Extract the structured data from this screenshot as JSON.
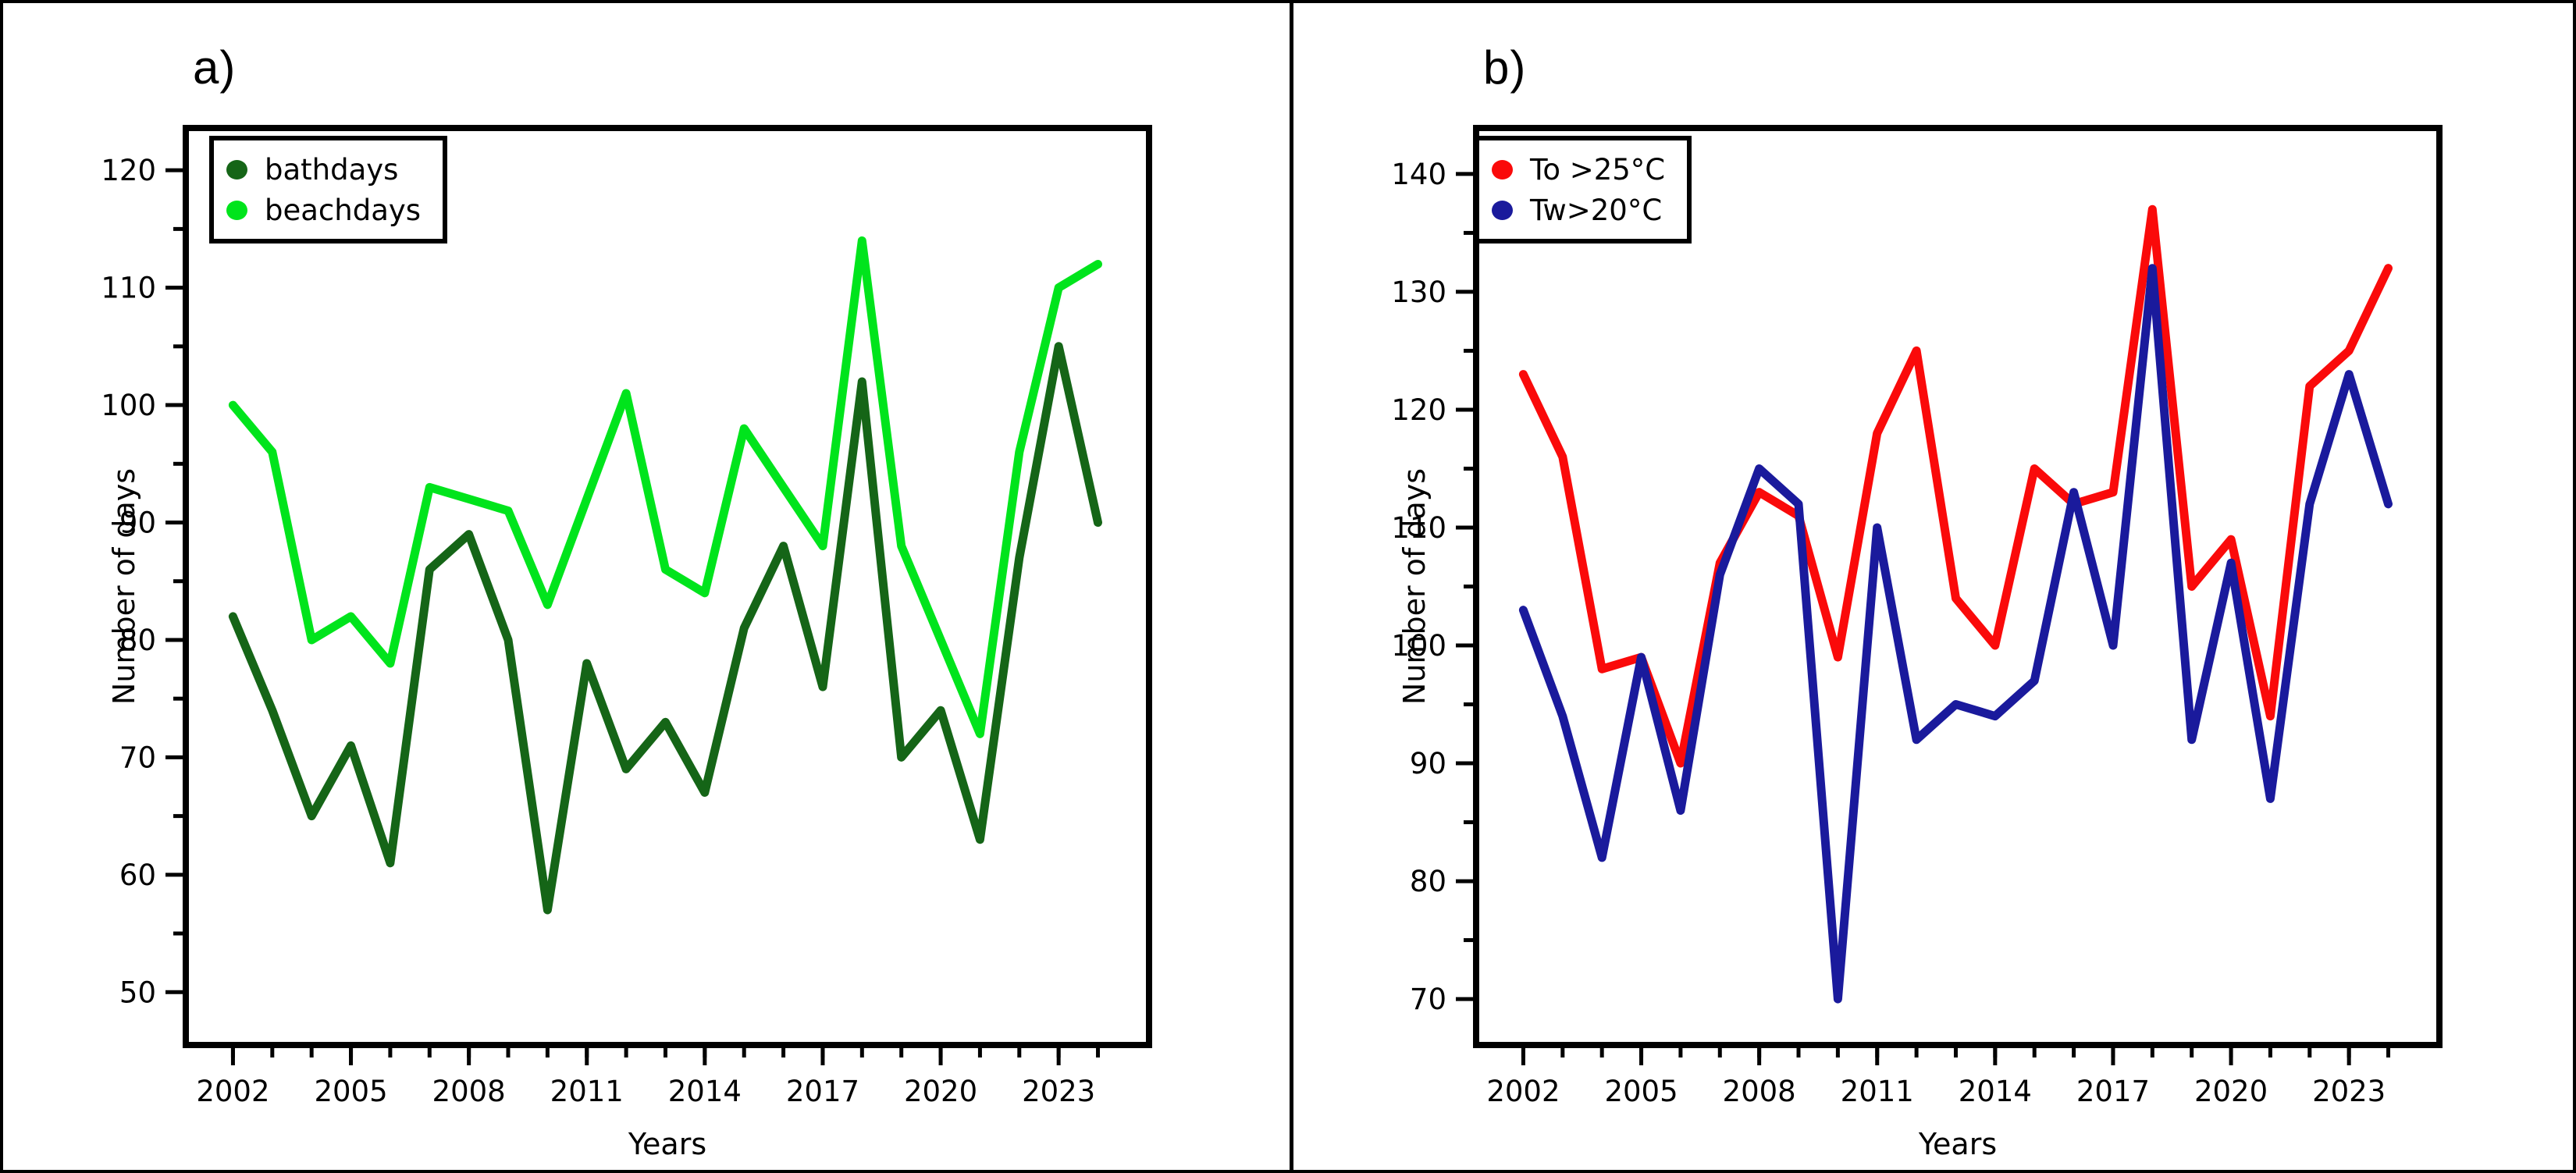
{
  "figure": {
    "background": "#ffffff",
    "border_color": "#000000"
  },
  "chart_data": [
    {
      "type": "line",
      "panel_label": "a)",
      "xlabel": "Years",
      "ylabel": "Number of days",
      "grid": false,
      "legend_position": "top-left",
      "x_years": [
        2002,
        2003,
        2004,
        2005,
        2006,
        2007,
        2008,
        2009,
        2010,
        2011,
        2012,
        2013,
        2014,
        2015,
        2016,
        2017,
        2018,
        2019,
        2020,
        2021,
        2022,
        2023,
        2024
      ],
      "x_range": [
        2000.8,
        2025.3
      ],
      "y_range": [
        45.5,
        123.6
      ],
      "yticks_major": [
        50,
        60,
        70,
        80,
        90,
        100,
        110,
        120
      ],
      "yticks_minor": [
        55,
        65,
        75,
        85,
        95,
        105,
        115
      ],
      "xticks_labeled": [
        2002,
        2005,
        2008,
        2011,
        2014,
        2017,
        2020,
        2023
      ],
      "xticks_minor": [
        2002,
        2003,
        2004,
        2005,
        2006,
        2007,
        2008,
        2009,
        2010,
        2011,
        2012,
        2013,
        2014,
        2015,
        2016,
        2017,
        2018,
        2019,
        2020,
        2021,
        2022,
        2023,
        2024
      ],
      "series": [
        {
          "name": "bathdays",
          "color": "#156517",
          "values": [
            82,
            74,
            65,
            71,
            61,
            86,
            89,
            80,
            57,
            78,
            69,
            73,
            67,
            81,
            88,
            76,
            102,
            70,
            74,
            63,
            87,
            105,
            90
          ]
        },
        {
          "name": "beachdays",
          "color": "#00E41C",
          "values": [
            100,
            96,
            80,
            82,
            78,
            93,
            92,
            91,
            83,
            92,
            101,
            86,
            84,
            98,
            93,
            88,
            114,
            88,
            80,
            72,
            96,
            110,
            112
          ]
        }
      ]
    },
    {
      "type": "line",
      "panel_label": "b)",
      "xlabel": "Years",
      "ylabel": "Number of days",
      "grid": false,
      "legend_position": "top-left",
      "x_years": [
        2002,
        2003,
        2004,
        2005,
        2006,
        2007,
        2008,
        2009,
        2010,
        2011,
        2012,
        2013,
        2014,
        2015,
        2016,
        2017,
        2018,
        2019,
        2020,
        2021,
        2022,
        2023,
        2024
      ],
      "x_range": [
        2000.8,
        2025.3
      ],
      "y_range": [
        66.1,
        143.9
      ],
      "yticks_major": [
        70,
        80,
        90,
        100,
        110,
        120,
        130,
        140
      ],
      "yticks_minor": [
        75,
        85,
        95,
        105,
        115,
        125,
        135
      ],
      "xticks_labeled": [
        2002,
        2005,
        2008,
        2011,
        2014,
        2017,
        2020,
        2023
      ],
      "xticks_minor": [
        2002,
        2003,
        2004,
        2005,
        2006,
        2007,
        2008,
        2009,
        2010,
        2011,
        2012,
        2013,
        2014,
        2015,
        2016,
        2017,
        2018,
        2019,
        2020,
        2021,
        2022,
        2023,
        2024
      ],
      "series": [
        {
          "name": "To >25°C",
          "color": "#FA0A0A",
          "values": [
            123,
            116,
            98,
            99,
            90,
            107,
            113,
            111,
            99,
            118,
            125,
            104,
            100,
            115,
            112,
            113,
            137,
            105,
            109,
            94,
            122,
            125,
            132
          ]
        },
        {
          "name": "Tw>20°C",
          "color": "#1A1A9C",
          "values": [
            103,
            94,
            82,
            99,
            86,
            106,
            115,
            112,
            70,
            110,
            92,
            95,
            94,
            97,
            113,
            100,
            132,
            92,
            107,
            87,
            112,
            123,
            112
          ]
        }
      ]
    }
  ]
}
